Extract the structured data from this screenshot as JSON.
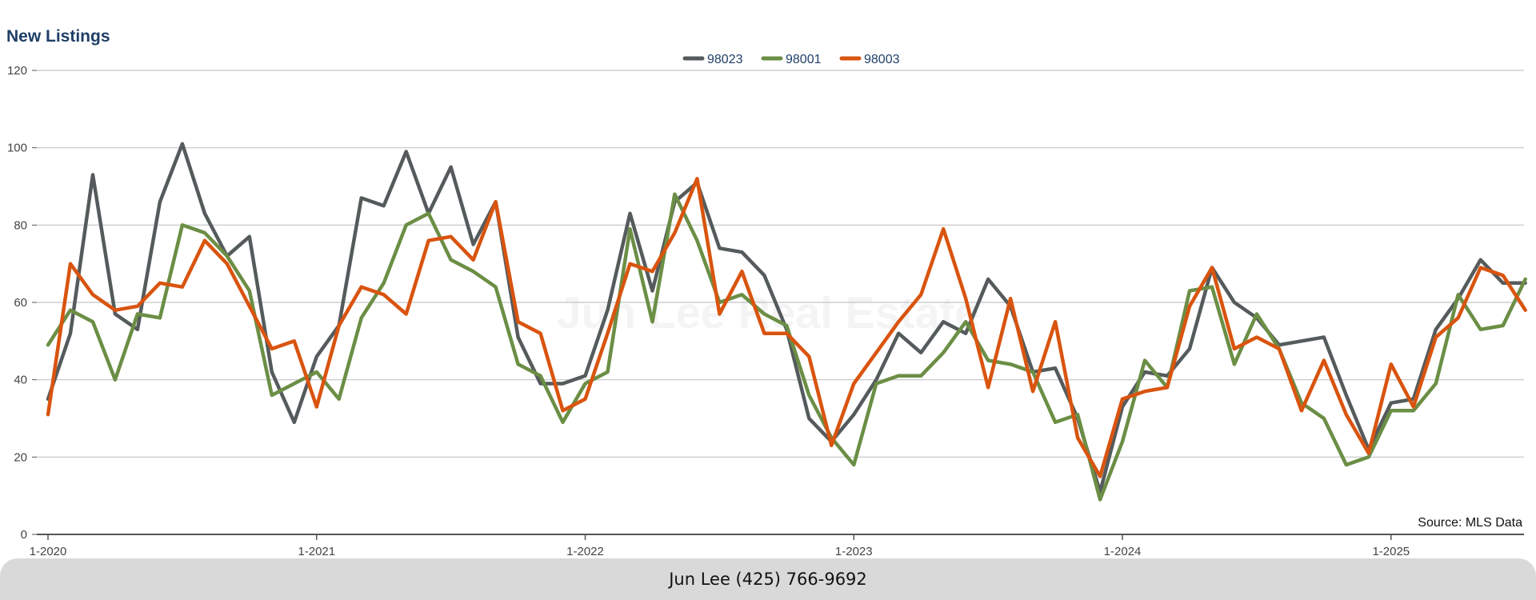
{
  "chart_data": {
    "type": "line",
    "title": "New Listings",
    "ylim": [
      0,
      120
    ],
    "yticks": [
      0,
      20,
      40,
      60,
      80,
      100,
      120
    ],
    "xtick_labels": [
      "1-2020",
      "1-2021",
      "1-2022",
      "1-2023",
      "1-2024",
      "1-2025"
    ],
    "grid": true,
    "legend_position": "top-center",
    "x_start": "2020-01",
    "x_end": "2025-07",
    "series": [
      {
        "name": "98023",
        "color": "#555b5c",
        "points": [
          [
            "2020-01",
            35
          ],
          [
            "2020-02",
            52
          ],
          [
            "2020-03",
            93
          ],
          [
            "2020-04",
            57
          ],
          [
            "2020-05",
            53
          ],
          [
            "2020-06",
            86
          ],
          [
            "2020-07",
            101
          ],
          [
            "2020-08",
            83
          ],
          [
            "2020-09",
            72
          ],
          [
            "2020-10",
            77
          ],
          [
            "2020-11",
            42
          ],
          [
            "2020-12",
            29
          ],
          [
            "2021-01",
            46
          ],
          [
            "2021-02",
            54
          ],
          [
            "2021-03",
            87
          ],
          [
            "2021-04",
            85
          ],
          [
            "2021-05",
            99
          ],
          [
            "2021-06",
            83
          ],
          [
            "2021-07",
            95
          ],
          [
            "2021-08",
            75
          ],
          [
            "2021-09",
            86
          ],
          [
            "2021-10",
            51
          ],
          [
            "2021-11",
            39
          ],
          [
            "2021-12",
            39
          ],
          [
            "2022-01",
            41
          ],
          [
            "2022-02",
            58
          ],
          [
            "2022-03",
            83
          ],
          [
            "2022-04",
            63
          ],
          [
            "2022-05",
            86
          ],
          [
            "2022-06",
            91
          ],
          [
            "2022-07",
            74
          ],
          [
            "2022-08",
            73
          ],
          [
            "2022-09",
            67
          ],
          [
            "2022-10",
            53
          ],
          [
            "2022-11",
            30
          ],
          [
            "2022-12",
            24
          ],
          [
            "2023-01",
            31
          ],
          [
            "2023-02",
            40
          ],
          [
            "2023-03",
            52
          ],
          [
            "2023-04",
            47
          ],
          [
            "2023-05",
            55
          ],
          [
            "2023-06",
            52
          ],
          [
            "2023-07",
            66
          ],
          [
            "2023-08",
            59
          ],
          [
            "2023-09",
            42
          ],
          [
            "2023-10",
            43
          ],
          [
            "2023-11",
            30
          ],
          [
            "2023-12",
            11
          ],
          [
            "2024-01",
            33
          ],
          [
            "2024-02",
            42
          ],
          [
            "2024-03",
            41
          ],
          [
            "2024-04",
            48
          ],
          [
            "2024-05",
            69
          ],
          [
            "2024-06",
            60
          ],
          [
            "2024-07",
            56
          ],
          [
            "2024-08",
            49
          ],
          [
            "2024-09",
            50
          ],
          [
            "2024-10",
            51
          ],
          [
            "2024-11",
            36
          ],
          [
            "2024-12",
            22
          ],
          [
            "2025-01",
            34
          ],
          [
            "2025-02",
            35
          ],
          [
            "2025-03",
            53
          ],
          [
            "2025-04",
            61
          ],
          [
            "2025-05",
            71
          ],
          [
            "2025-06",
            65
          ],
          [
            "2025-07",
            65
          ]
        ]
      },
      {
        "name": "98001",
        "color": "#6b8e45",
        "points": [
          [
            "2020-01",
            49
          ],
          [
            "2020-02",
            58
          ],
          [
            "2020-03",
            55
          ],
          [
            "2020-04",
            40
          ],
          [
            "2020-05",
            57
          ],
          [
            "2020-06",
            56
          ],
          [
            "2020-07",
            80
          ],
          [
            "2020-08",
            78
          ],
          [
            "2020-09",
            72
          ],
          [
            "2020-10",
            63
          ],
          [
            "2020-11",
            36
          ],
          [
            "2020-12",
            39
          ],
          [
            "2021-01",
            42
          ],
          [
            "2021-02",
            35
          ],
          [
            "2021-03",
            56
          ],
          [
            "2021-04",
            65
          ],
          [
            "2021-05",
            80
          ],
          [
            "2021-06",
            83
          ],
          [
            "2021-07",
            71
          ],
          [
            "2021-08",
            68
          ],
          [
            "2021-09",
            64
          ],
          [
            "2021-10",
            44
          ],
          [
            "2021-11",
            41
          ],
          [
            "2021-12",
            29
          ],
          [
            "2022-01",
            39
          ],
          [
            "2022-02",
            42
          ],
          [
            "2022-03",
            79
          ],
          [
            "2022-04",
            55
          ],
          [
            "2022-05",
            88
          ],
          [
            "2022-06",
            76
          ],
          [
            "2022-07",
            60
          ],
          [
            "2022-08",
            62
          ],
          [
            "2022-09",
            57
          ],
          [
            "2022-10",
            54
          ],
          [
            "2022-11",
            36
          ],
          [
            "2022-12",
            25
          ],
          [
            "2023-01",
            18
          ],
          [
            "2023-02",
            39
          ],
          [
            "2023-03",
            41
          ],
          [
            "2023-04",
            41
          ],
          [
            "2023-05",
            47
          ],
          [
            "2023-06",
            55
          ],
          [
            "2023-07",
            45
          ],
          [
            "2023-08",
            44
          ],
          [
            "2023-09",
            42
          ],
          [
            "2023-10",
            29
          ],
          [
            "2023-11",
            31
          ],
          [
            "2023-12",
            9
          ],
          [
            "2024-01",
            24
          ],
          [
            "2024-02",
            45
          ],
          [
            "2024-03",
            38
          ],
          [
            "2024-04",
            63
          ],
          [
            "2024-05",
            64
          ],
          [
            "2024-06",
            44
          ],
          [
            "2024-07",
            57
          ],
          [
            "2024-08",
            48
          ],
          [
            "2024-09",
            34
          ],
          [
            "2024-10",
            30
          ],
          [
            "2024-11",
            18
          ],
          [
            "2024-12",
            20
          ],
          [
            "2025-01",
            32
          ],
          [
            "2025-02",
            32
          ],
          [
            "2025-03",
            39
          ],
          [
            "2025-04",
            62
          ],
          [
            "2025-05",
            53
          ],
          [
            "2025-06",
            54
          ],
          [
            "2025-07",
            66
          ]
        ]
      },
      {
        "name": "98003",
        "color": "#d9540f",
        "points": [
          [
            "2020-01",
            31
          ],
          [
            "2020-02",
            70
          ],
          [
            "2020-03",
            62
          ],
          [
            "2020-04",
            58
          ],
          [
            "2020-05",
            59
          ],
          [
            "2020-06",
            65
          ],
          [
            "2020-07",
            64
          ],
          [
            "2020-08",
            76
          ],
          [
            "2020-09",
            70
          ],
          [
            "2020-10",
            59
          ],
          [
            "2020-11",
            48
          ],
          [
            "2020-12",
            50
          ],
          [
            "2021-01",
            33
          ],
          [
            "2021-02",
            54
          ],
          [
            "2021-03",
            64
          ],
          [
            "2021-04",
            62
          ],
          [
            "2021-05",
            57
          ],
          [
            "2021-06",
            76
          ],
          [
            "2021-07",
            77
          ],
          [
            "2021-08",
            71
          ],
          [
            "2021-09",
            86
          ],
          [
            "2021-10",
            55
          ],
          [
            "2021-11",
            52
          ],
          [
            "2021-12",
            32
          ],
          [
            "2022-01",
            35
          ],
          [
            "2022-02",
            52
          ],
          [
            "2022-03",
            70
          ],
          [
            "2022-04",
            68
          ],
          [
            "2022-05",
            78
          ],
          [
            "2022-06",
            92
          ],
          [
            "2022-07",
            57
          ],
          [
            "2022-08",
            68
          ],
          [
            "2022-09",
            52
          ],
          [
            "2022-10",
            52
          ],
          [
            "2022-11",
            46
          ],
          [
            "2022-12",
            23
          ],
          [
            "2023-01",
            39
          ],
          [
            "2023-02",
            47
          ],
          [
            "2023-03",
            55
          ],
          [
            "2023-04",
            62
          ],
          [
            "2023-05",
            79
          ],
          [
            "2023-06",
            61
          ],
          [
            "2023-07",
            38
          ],
          [
            "2023-08",
            61
          ],
          [
            "2023-09",
            37
          ],
          [
            "2023-10",
            55
          ],
          [
            "2023-11",
            25
          ],
          [
            "2023-12",
            15
          ],
          [
            "2024-01",
            35
          ],
          [
            "2024-02",
            37
          ],
          [
            "2024-03",
            38
          ],
          [
            "2024-04",
            59
          ],
          [
            "2024-05",
            69
          ],
          [
            "2024-06",
            48
          ],
          [
            "2024-07",
            51
          ],
          [
            "2024-08",
            48
          ],
          [
            "2024-09",
            32
          ],
          [
            "2024-10",
            45
          ],
          [
            "2024-11",
            31
          ],
          [
            "2024-12",
            21
          ],
          [
            "2025-01",
            44
          ],
          [
            "2025-02",
            33
          ],
          [
            "2025-03",
            51
          ],
          [
            "2025-04",
            56
          ],
          [
            "2025-05",
            69
          ],
          [
            "2025-06",
            67
          ],
          [
            "2025-07",
            58
          ]
        ]
      }
    ],
    "annotations": [
      "Source: MLS Data"
    ]
  },
  "watermark": "Jun Lee Real Estate",
  "footer": {
    "text": "Jun Lee (425) 766-9692"
  }
}
